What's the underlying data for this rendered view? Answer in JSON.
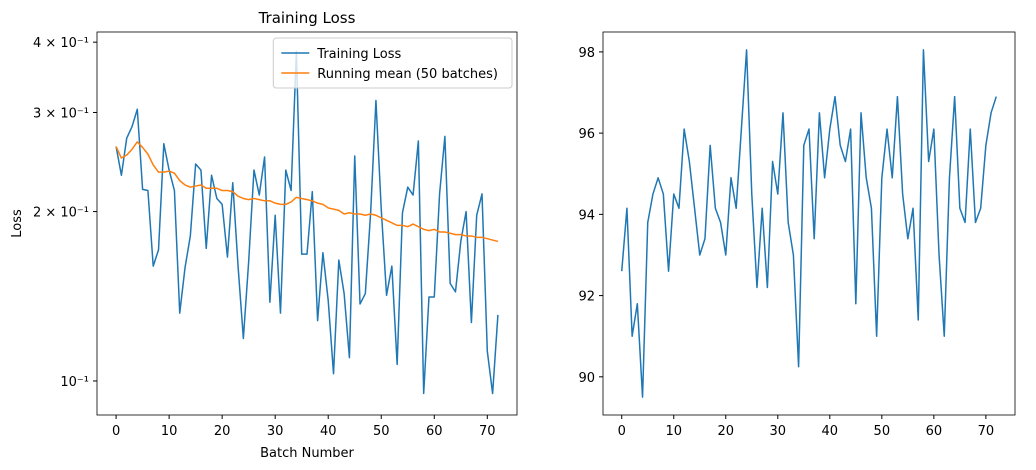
{
  "chart_data": [
    {
      "type": "line",
      "title": "Training Loss",
      "x_label": "Batch Number",
      "y_label": "Loss",
      "yscale": "log",
      "legend": "upper right",
      "x": [
        0,
        1,
        2,
        3,
        4,
        5,
        6,
        7,
        8,
        9,
        10,
        11,
        12,
        13,
        14,
        15,
        16,
        17,
        18,
        19,
        20,
        21,
        22,
        23,
        24,
        25,
        26,
        27,
        28,
        29,
        30,
        31,
        32,
        33,
        34,
        35,
        36,
        37,
        38,
        39,
        40,
        41,
        42,
        43,
        44,
        45,
        46,
        47,
        48,
        49,
        50,
        51,
        52,
        53,
        54,
        55,
        56,
        57,
        58,
        59,
        60,
        61,
        62,
        63,
        64,
        65,
        66,
        67,
        68,
        69,
        70,
        71,
        72
      ],
      "xlim": [
        -3.6,
        75.6
      ],
      "xticks": [
        0,
        10,
        20,
        30,
        40,
        50,
        60,
        70
      ],
      "ylim": [
        0.087,
        0.417
      ],
      "yticks": [
        {
          "value": 0.1,
          "label": "10⁻¹"
        },
        {
          "value": 0.2,
          "label": "2 × 10⁻¹"
        },
        {
          "value": 0.3,
          "label": "3 × 10⁻¹"
        },
        {
          "value": 0.4,
          "label": "4 × 10⁻¹"
        }
      ],
      "series": [
        {
          "name": "Training Loss",
          "color": "#1f77b4",
          "values": [
            0.261,
            0.232,
            0.27,
            0.283,
            0.304,
            0.219,
            0.218,
            0.16,
            0.171,
            0.264,
            0.237,
            0.218,
            0.132,
            0.159,
            0.181,
            0.243,
            0.237,
            0.172,
            0.232,
            0.211,
            0.206,
            0.166,
            0.225,
            0.16,
            0.119,
            0.163,
            0.237,
            0.214,
            0.25,
            0.138,
            0.197,
            0.132,
            0.237,
            0.218,
            0.385,
            0.168,
            0.168,
            0.217,
            0.128,
            0.169,
            0.139,
            0.103,
            0.164,
            0.143,
            0.11,
            0.251,
            0.137,
            0.143,
            0.199,
            0.315,
            0.202,
            0.142,
            0.16,
            0.107,
            0.199,
            0.221,
            0.214,
            0.267,
            0.095,
            0.141,
            0.141,
            0.215,
            0.272,
            0.149,
            0.144,
            0.177,
            0.2,
            0.127,
            0.197,
            0.215,
            0.113,
            0.095,
            0.131
          ]
        },
        {
          "name": "Running mean (50 batches)",
          "color": "#ff7f0e",
          "values": [
            0.261,
            0.249,
            0.252,
            0.258,
            0.266,
            0.26,
            0.253,
            0.242,
            0.235,
            0.235,
            0.236,
            0.234,
            0.227,
            0.223,
            0.221,
            0.222,
            0.223,
            0.22,
            0.22,
            0.22,
            0.218,
            0.218,
            0.217,
            0.213,
            0.211,
            0.21,
            0.211,
            0.21,
            0.209,
            0.209,
            0.207,
            0.206,
            0.206,
            0.208,
            0.212,
            0.211,
            0.21,
            0.209,
            0.207,
            0.206,
            0.203,
            0.202,
            0.201,
            0.198,
            0.199,
            0.198,
            0.198,
            0.197,
            0.198,
            0.197,
            0.195,
            0.193,
            0.191,
            0.189,
            0.189,
            0.188,
            0.19,
            0.188,
            0.186,
            0.185,
            0.186,
            0.184,
            0.184,
            0.183,
            0.182,
            0.182,
            0.181,
            0.181,
            0.18,
            0.18,
            0.179,
            0.178,
            0.177
          ]
        }
      ]
    },
    {
      "type": "line",
      "x": [
        0,
        1,
        2,
        3,
        4,
        5,
        6,
        7,
        8,
        9,
        10,
        11,
        12,
        13,
        14,
        15,
        16,
        17,
        18,
        19,
        20,
        21,
        22,
        23,
        24,
        25,
        26,
        27,
        28,
        29,
        30,
        31,
        32,
        33,
        34,
        35,
        36,
        37,
        38,
        39,
        40,
        41,
        42,
        43,
        44,
        45,
        46,
        47,
        48,
        49,
        50,
        51,
        52,
        53,
        54,
        55,
        56,
        57,
        58,
        59,
        60,
        61,
        62,
        63,
        64,
        65,
        66,
        67,
        68,
        69,
        70,
        71,
        72
      ],
      "xlim": [
        -3.6,
        75.6
      ],
      "xticks": [
        0,
        10,
        20,
        30,
        40,
        50,
        60,
        70
      ],
      "ylim": [
        89.06,
        98.49
      ],
      "yticks": [
        90,
        92,
        94,
        96,
        98
      ],
      "series": [
        {
          "color": "#1f77b4",
          "values": [
            92.6,
            94.15,
            91.0,
            91.8,
            89.5,
            93.8,
            94.5,
            94.9,
            94.5,
            92.6,
            94.5,
            94.15,
            96.1,
            95.3,
            94.15,
            93.0,
            93.4,
            95.7,
            94.15,
            93.8,
            93.0,
            94.9,
            94.15,
            96.1,
            98.05,
            94.5,
            92.2,
            94.15,
            92.2,
            95.3,
            94.5,
            96.5,
            93.8,
            93.0,
            90.25,
            95.7,
            96.1,
            93.4,
            96.5,
            94.9,
            96.1,
            96.9,
            95.7,
            95.3,
            96.1,
            91.8,
            96.5,
            94.9,
            94.15,
            91.0,
            94.9,
            96.1,
            94.9,
            96.9,
            94.5,
            93.4,
            94.15,
            91.4,
            98.05,
            95.3,
            96.1,
            93.0,
            91.0,
            94.9,
            96.9,
            94.15,
            93.8,
            96.1,
            93.8,
            94.15,
            95.7,
            96.5,
            96.9
          ]
        }
      ]
    }
  ]
}
